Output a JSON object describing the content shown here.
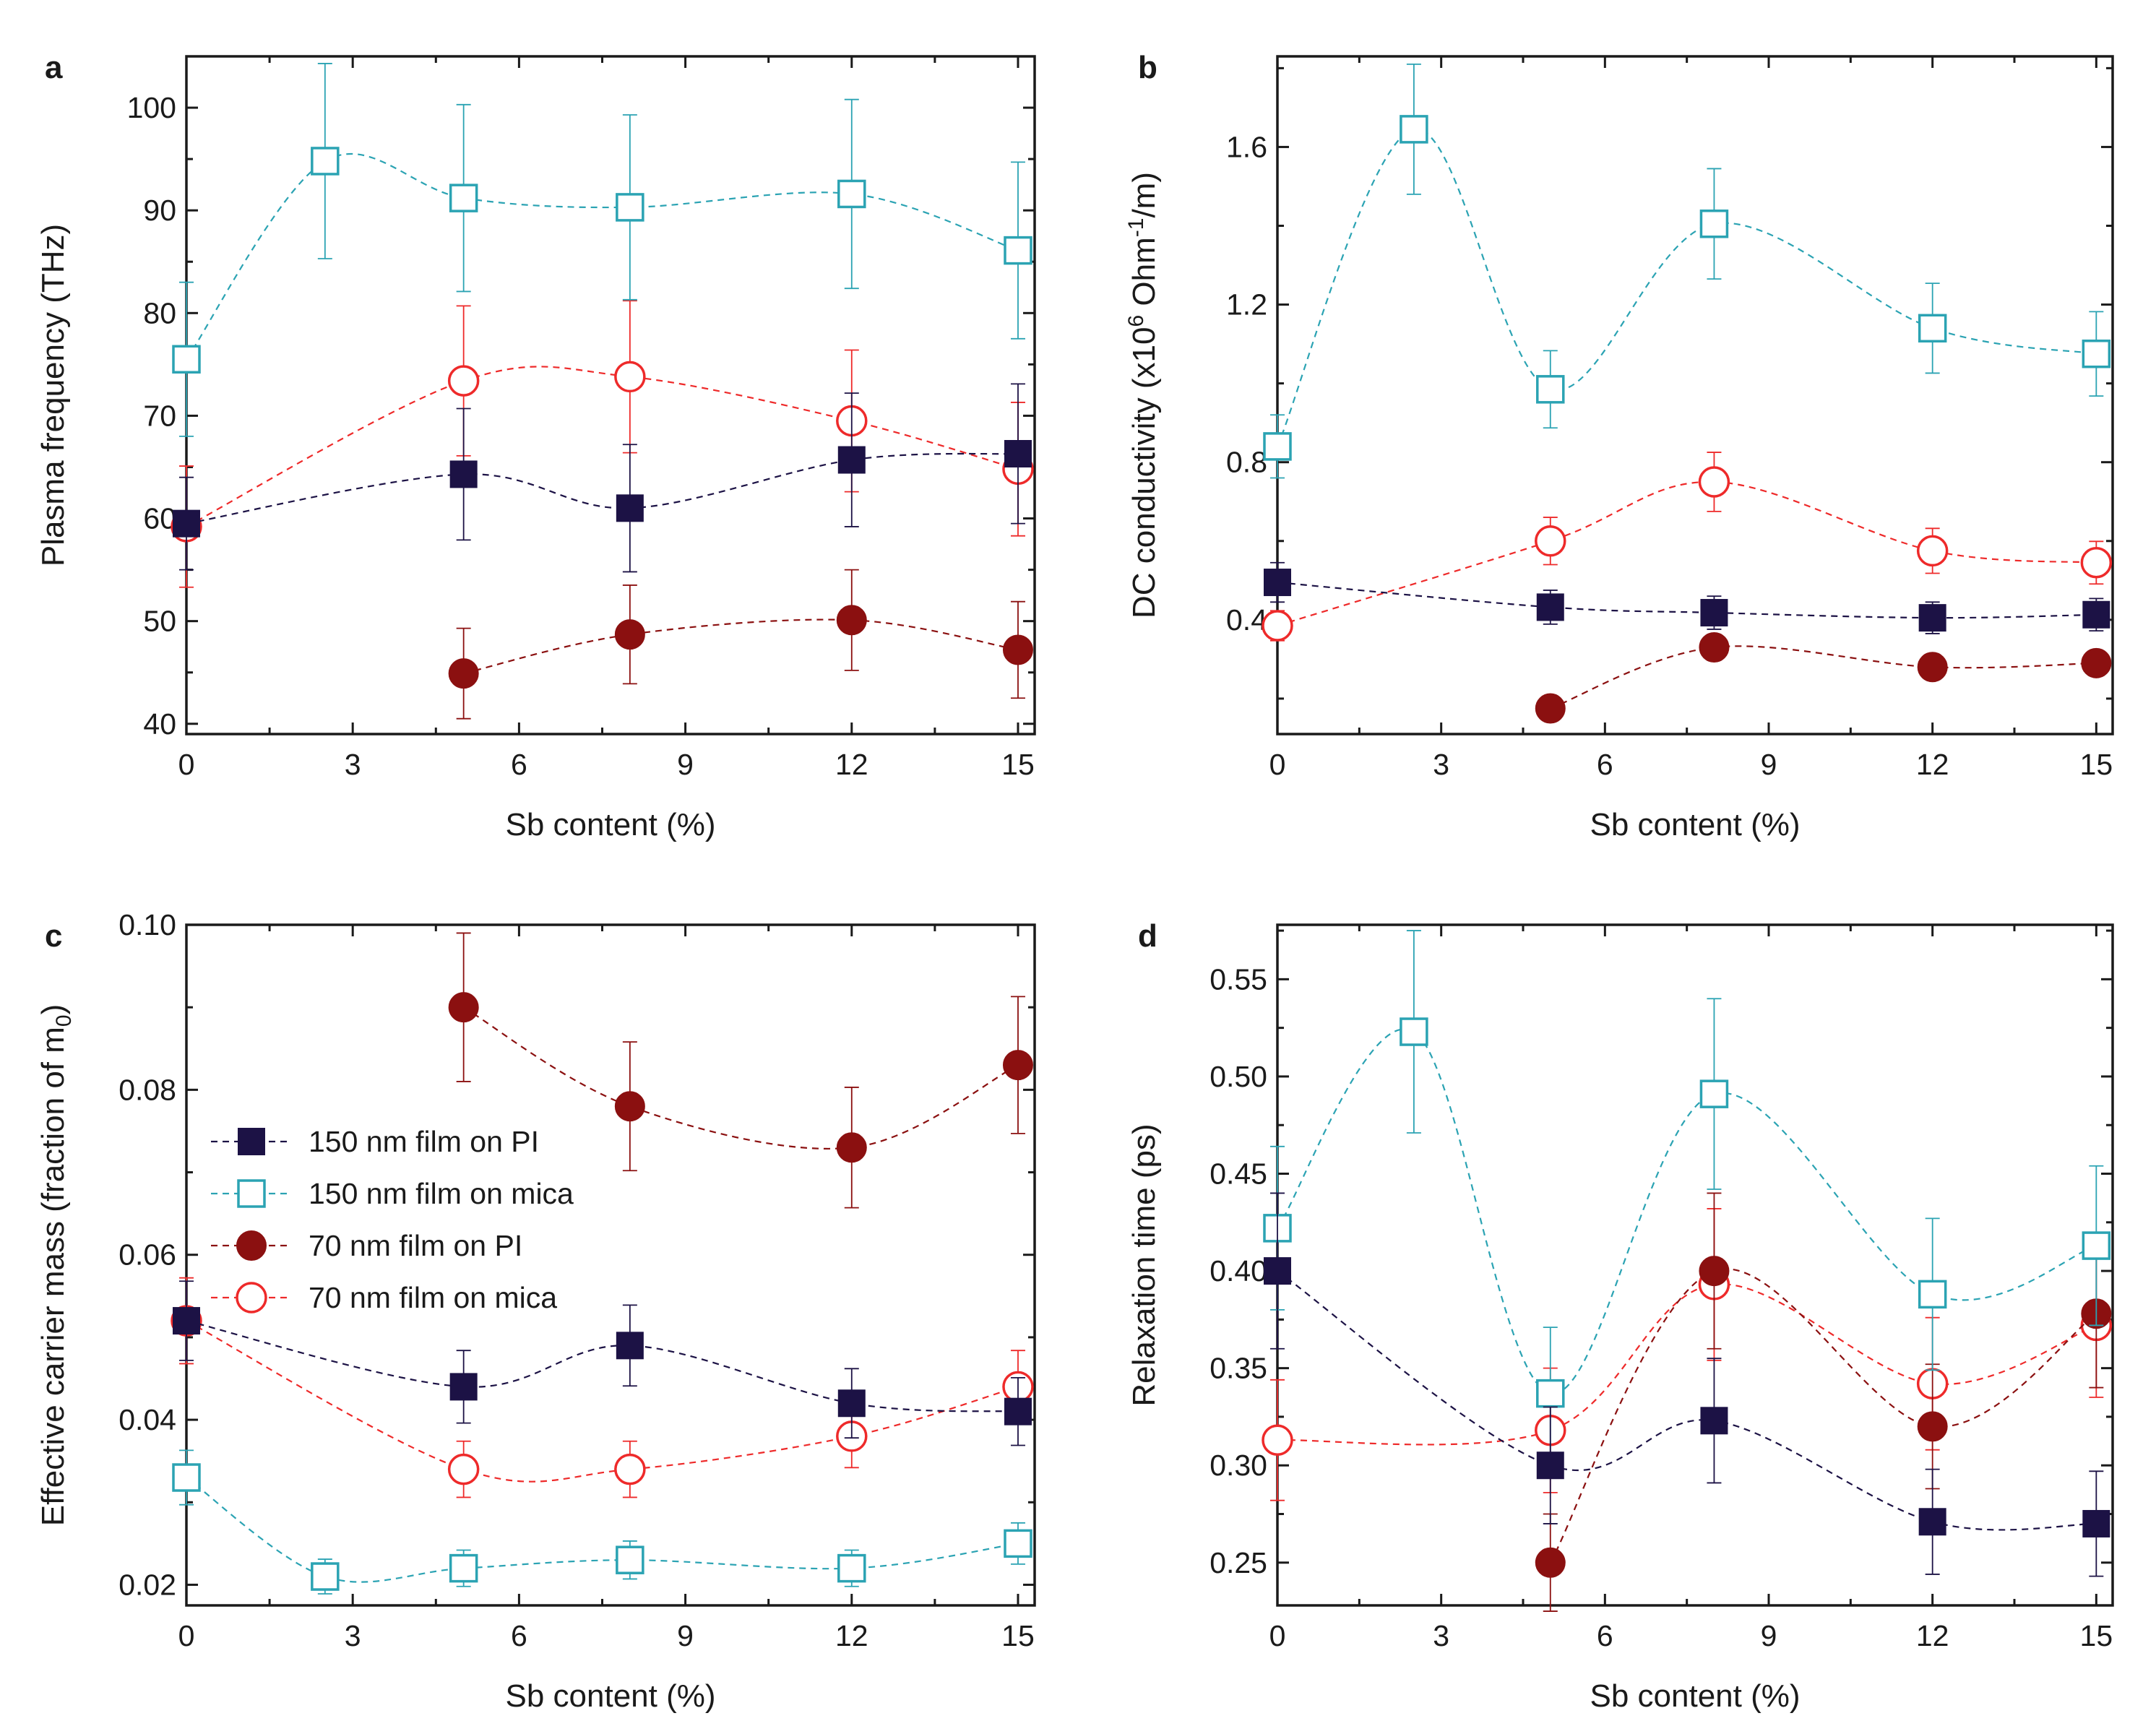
{
  "figure": {
    "colors": {
      "pi150": "#1c1245",
      "mica150": "#2ba3b3",
      "pi70": "#8b1010",
      "mica70": "#ee2a2a",
      "axis": "#1a1a1a"
    },
    "legend": [
      {
        "key": "pi150",
        "label": "150 nm film on PI",
        "marker": "square",
        "filled": true
      },
      {
        "key": "mica150",
        "label": "150 nm film on mica",
        "marker": "square",
        "filled": false
      },
      {
        "key": "pi70",
        "label": "70 nm film on PI",
        "marker": "circle",
        "filled": true
      },
      {
        "key": "mica70",
        "label": "70 nm film on mica",
        "marker": "circle",
        "filled": false
      }
    ]
  },
  "chart_data": [
    {
      "panel": "a",
      "type": "scatter",
      "xlabel": "Sb content (%)",
      "ylabel": "Plasma frequency (THz)",
      "xlim": [
        0,
        15.3
      ],
      "ylim": [
        39,
        105
      ],
      "xticks": [
        0,
        3,
        6,
        9,
        12,
        15
      ],
      "xtick_labels": [
        "0",
        "3",
        "6",
        "9",
        "12",
        "15"
      ],
      "yticks": [
        40,
        50,
        60,
        70,
        80,
        90,
        100
      ],
      "ytick_labels": [
        "40",
        "50",
        "60",
        "70",
        "80",
        "90",
        "100"
      ],
      "series": [
        {
          "key": "pi150",
          "name": "150 nm film on PI",
          "x": [
            0,
            5,
            8,
            12,
            15
          ],
          "y": [
            59.5,
            64.3,
            61.0,
            65.7,
            66.3
          ],
          "err": [
            4.5,
            6.4,
            6.2,
            6.5,
            6.8
          ]
        },
        {
          "key": "mica150",
          "name": "150 nm film on mica",
          "x": [
            0,
            2.5,
            5,
            8,
            12,
            15
          ],
          "y": [
            75.5,
            94.8,
            91.2,
            90.3,
            91.6,
            86.1
          ],
          "err": [
            7.5,
            9.5,
            9.1,
            9.0,
            9.2,
            8.6
          ]
        },
        {
          "key": "pi70",
          "name": "70 nm film on PI",
          "x": [
            5,
            8,
            12,
            15
          ],
          "y": [
            44.9,
            48.7,
            50.1,
            47.2
          ],
          "err": [
            4.4,
            4.8,
            4.9,
            4.7
          ]
        },
        {
          "key": "mica70",
          "name": "70 nm film on mica",
          "x": [
            0,
            5,
            8,
            12,
            15
          ],
          "y": [
            59.2,
            73.4,
            73.8,
            69.5,
            64.8
          ],
          "err": [
            5.9,
            7.3,
            7.4,
            6.9,
            6.5
          ]
        }
      ]
    },
    {
      "panel": "b",
      "type": "scatter",
      "xlabel": "Sb content (%)",
      "ylabel": "DC conductivity (x10",
      "ylabel_sup1": "6",
      "ylabel_mid": " Ohm",
      "ylabel_sup2": "-1",
      "ylabel_end": "/m)",
      "xlim": [
        0,
        15.3
      ],
      "ylim": [
        0.11,
        1.83
      ],
      "xticks": [
        0,
        3,
        6,
        9,
        12,
        15
      ],
      "xtick_labels": [
        "0",
        "3",
        "6",
        "9",
        "12",
        "15"
      ],
      "yticks": [
        0.4,
        0.8,
        1.2,
        1.6
      ],
      "ytick_labels": [
        "0.4",
        "0.8",
        "1.2",
        "1.6"
      ],
      "series": [
        {
          "key": "pi150",
          "name": "150 nm film on PI",
          "x": [
            0,
            5,
            8,
            12,
            15
          ],
          "y": [
            0.495,
            0.432,
            0.418,
            0.405,
            0.413
          ],
          "err": [
            0.05,
            0.043,
            0.042,
            0.04,
            0.041
          ]
        },
        {
          "key": "mica150",
          "name": "150 nm film on mica",
          "x": [
            0,
            2.5,
            5,
            8,
            12,
            15
          ],
          "y": [
            0.84,
            1.645,
            0.985,
            1.405,
            1.14,
            1.075
          ],
          "err": [
            0.08,
            0.165,
            0.098,
            0.14,
            0.114,
            0.107
          ]
        },
        {
          "key": "pi70",
          "name": "70 nm film on PI",
          "x": [
            5,
            8,
            12,
            15
          ],
          "y": [
            0.175,
            0.33,
            0.28,
            0.29
          ],
          "err": [
            0.017,
            0.033,
            0.028,
            0.029
          ]
        },
        {
          "key": "mica70",
          "name": "70 nm film on mica",
          "x": [
            0,
            5,
            8,
            12,
            15
          ],
          "y": [
            0.385,
            0.6,
            0.75,
            0.575,
            0.545
          ],
          "err": [
            0.038,
            0.06,
            0.075,
            0.057,
            0.054
          ]
        }
      ]
    },
    {
      "panel": "c",
      "type": "scatter",
      "xlabel": "Sb content (%)",
      "ylabel": "Effective carrier mass (fraction of m",
      "ylabel_sub": "0",
      "ylabel_end": ")",
      "xlim": [
        0,
        15.3
      ],
      "ylim": [
        0.0175,
        0.1
      ],
      "xticks": [
        0,
        3,
        6,
        9,
        12,
        15
      ],
      "xtick_labels": [
        "0",
        "3",
        "6",
        "9",
        "12",
        "15"
      ],
      "yticks": [
        0.02,
        0.04,
        0.06,
        0.08,
        0.1
      ],
      "ytick_labels": [
        "0.02",
        "0.04",
        "0.06",
        "0.08",
        "0.10"
      ],
      "series": [
        {
          "key": "pi150",
          "name": "150 nm film on PI",
          "x": [
            0,
            5,
            8,
            12,
            15
          ],
          "y": [
            0.052,
            0.044,
            0.049,
            0.042,
            0.041
          ],
          "err": [
            0.0048,
            0.0044,
            0.0049,
            0.0042,
            0.0041
          ]
        },
        {
          "key": "mica150",
          "name": "150 nm film on mica",
          "x": [
            0,
            2.5,
            5,
            8,
            12,
            15
          ],
          "y": [
            0.033,
            0.021,
            0.022,
            0.023,
            0.022,
            0.025
          ],
          "err": [
            0.0033,
            0.0021,
            0.0022,
            0.0023,
            0.0022,
            0.0025
          ]
        },
        {
          "key": "pi70",
          "name": "70 nm film on PI",
          "x": [
            5,
            8,
            12,
            15
          ],
          "y": [
            0.09,
            0.078,
            0.073,
            0.083
          ],
          "err": [
            0.009,
            0.0078,
            0.0073,
            0.0083
          ]
        },
        {
          "key": "mica70",
          "name": "70 nm film on mica",
          "x": [
            0,
            5,
            8,
            12,
            15
          ],
          "y": [
            0.052,
            0.034,
            0.034,
            0.038,
            0.044
          ],
          "err": [
            0.0052,
            0.0034,
            0.0034,
            0.0038,
            0.0044
          ]
        }
      ],
      "legend": "center-left"
    },
    {
      "panel": "d",
      "type": "scatter",
      "xlabel": "Sb content (%)",
      "ylabel": "Relaxation time (ps)",
      "xlim": [
        0,
        15.3
      ],
      "ylim": [
        0.228,
        0.578
      ],
      "xticks": [
        0,
        3,
        6,
        9,
        12,
        15
      ],
      "xtick_labels": [
        "0",
        "3",
        "6",
        "9",
        "12",
        "15"
      ],
      "yticks": [
        0.25,
        0.3,
        0.35,
        0.4,
        0.45,
        0.5,
        0.55
      ],
      "ytick_labels": [
        "0.25",
        "0.30",
        "0.35",
        "0.40",
        "0.45",
        "0.50",
        "0.55"
      ],
      "series": [
        {
          "key": "pi150",
          "name": "150 nm film on PI",
          "x": [
            0,
            5,
            8,
            12,
            15
          ],
          "y": [
            0.4,
            0.3,
            0.323,
            0.271,
            0.27
          ],
          "err": [
            0.04,
            0.03,
            0.032,
            0.027,
            0.027
          ]
        },
        {
          "key": "mica150",
          "name": "150 nm film on mica",
          "x": [
            0,
            2.5,
            5,
            8,
            12,
            15
          ],
          "y": [
            0.422,
            0.523,
            0.337,
            0.491,
            0.388,
            0.413
          ],
          "err": [
            0.042,
            0.052,
            0.034,
            0.049,
            0.039,
            0.041
          ]
        },
        {
          "key": "pi70",
          "name": "70 nm film on PI",
          "x": [
            5,
            8,
            12,
            15
          ],
          "y": [
            0.25,
            0.4,
            0.32,
            0.378
          ],
          "err": [
            0.025,
            0.04,
            0.032,
            0.038
          ]
        },
        {
          "key": "mica70",
          "name": "70 nm film on mica",
          "x": [
            0,
            5,
            8,
            12,
            15
          ],
          "y": [
            0.313,
            0.318,
            0.393,
            0.342,
            0.372
          ],
          "err": [
            0.031,
            0.032,
            0.039,
            0.034,
            0.037
          ]
        }
      ]
    }
  ]
}
